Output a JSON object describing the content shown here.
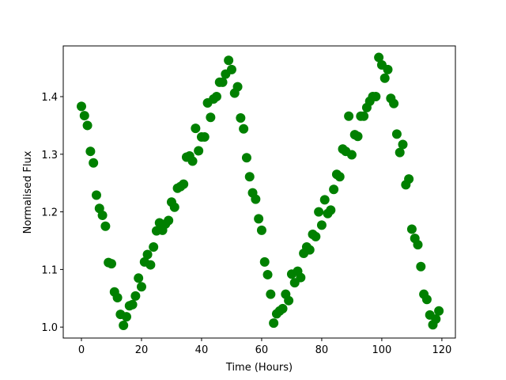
{
  "chart_data": {
    "type": "scatter",
    "xlabel": "Time (Hours)",
    "ylabel": "Normalised Flux",
    "color": "#008000",
    "x": [
      0,
      1,
      2,
      3,
      4,
      5,
      6,
      7,
      8,
      9,
      10,
      11,
      12,
      13,
      14,
      15,
      16,
      17,
      18,
      19,
      20,
      21,
      22,
      23,
      24,
      25,
      26,
      27,
      28,
      29,
      30,
      31,
      32,
      33,
      34,
      35,
      36,
      37,
      38,
      39,
      40,
      41,
      42,
      43,
      44,
      45,
      46,
      47,
      48,
      49,
      50,
      51,
      52,
      53,
      54,
      55,
      56,
      57,
      58,
      59,
      60,
      61,
      62,
      63,
      64,
      65,
      66,
      67,
      68,
      69,
      70,
      71,
      72,
      73,
      74,
      75,
      76,
      77,
      78,
      79,
      80,
      81,
      82,
      83,
      84,
      85,
      86,
      87,
      88,
      89,
      90,
      91,
      92,
      93,
      94,
      95,
      96,
      97,
      98,
      99,
      100,
      101,
      102,
      103,
      104,
      105,
      106,
      107,
      108,
      109,
      110,
      111,
      112,
      113,
      114,
      115,
      116,
      117,
      118,
      119
    ],
    "values": [
      1.383,
      1.367,
      1.35,
      1.305,
      1.285,
      1.229,
      1.206,
      1.194,
      1.175,
      1.112,
      1.11,
      1.061,
      1.051,
      1.022,
      1.003,
      1.018,
      1.037,
      1.039,
      1.054,
      1.085,
      1.07,
      1.113,
      1.126,
      1.108,
      1.139,
      1.167,
      1.181,
      1.168,
      1.179,
      1.185,
      1.217,
      1.208,
      1.241,
      1.244,
      1.248,
      1.295,
      1.297,
      1.288,
      1.345,
      1.306,
      1.33,
      1.33,
      1.389,
      1.364,
      1.396,
      1.4,
      1.425,
      1.425,
      1.439,
      1.463,
      1.447,
      1.406,
      1.417,
      1.363,
      1.344,
      1.294,
      1.261,
      1.233,
      1.222,
      1.188,
      1.168,
      1.113,
      1.091,
      1.057,
      1.007,
      1.023,
      1.028,
      1.032,
      1.057,
      1.046,
      1.092,
      1.077,
      1.097,
      1.086,
      1.128,
      1.139,
      1.134,
      1.161,
      1.157,
      1.2,
      1.177,
      1.221,
      1.197,
      1.203,
      1.239,
      1.265,
      1.261,
      1.309,
      1.305,
      1.366,
      1.299,
      1.334,
      1.331,
      1.366,
      1.366,
      1.381,
      1.392,
      1.4,
      1.4,
      1.468,
      1.455,
      1.432,
      1.447,
      1.397,
      1.388,
      1.335,
      1.303,
      1.317,
      1.247,
      1.257,
      1.17,
      1.154,
      1.143,
      1.105,
      1.057,
      1.048,
      1.021,
      1.004,
      1.014,
      1.028
    ],
    "xlim": [
      -6.05,
      124.5
    ],
    "ylim": [
      0.981,
      1.488
    ],
    "xticks": [
      0,
      20,
      40,
      60,
      80,
      100,
      120
    ],
    "yticks": [
      {
        "value": 1.0,
        "label": "1.0"
      },
      1.1,
      1.2,
      1.3,
      1.4
    ],
    "grid": false
  }
}
